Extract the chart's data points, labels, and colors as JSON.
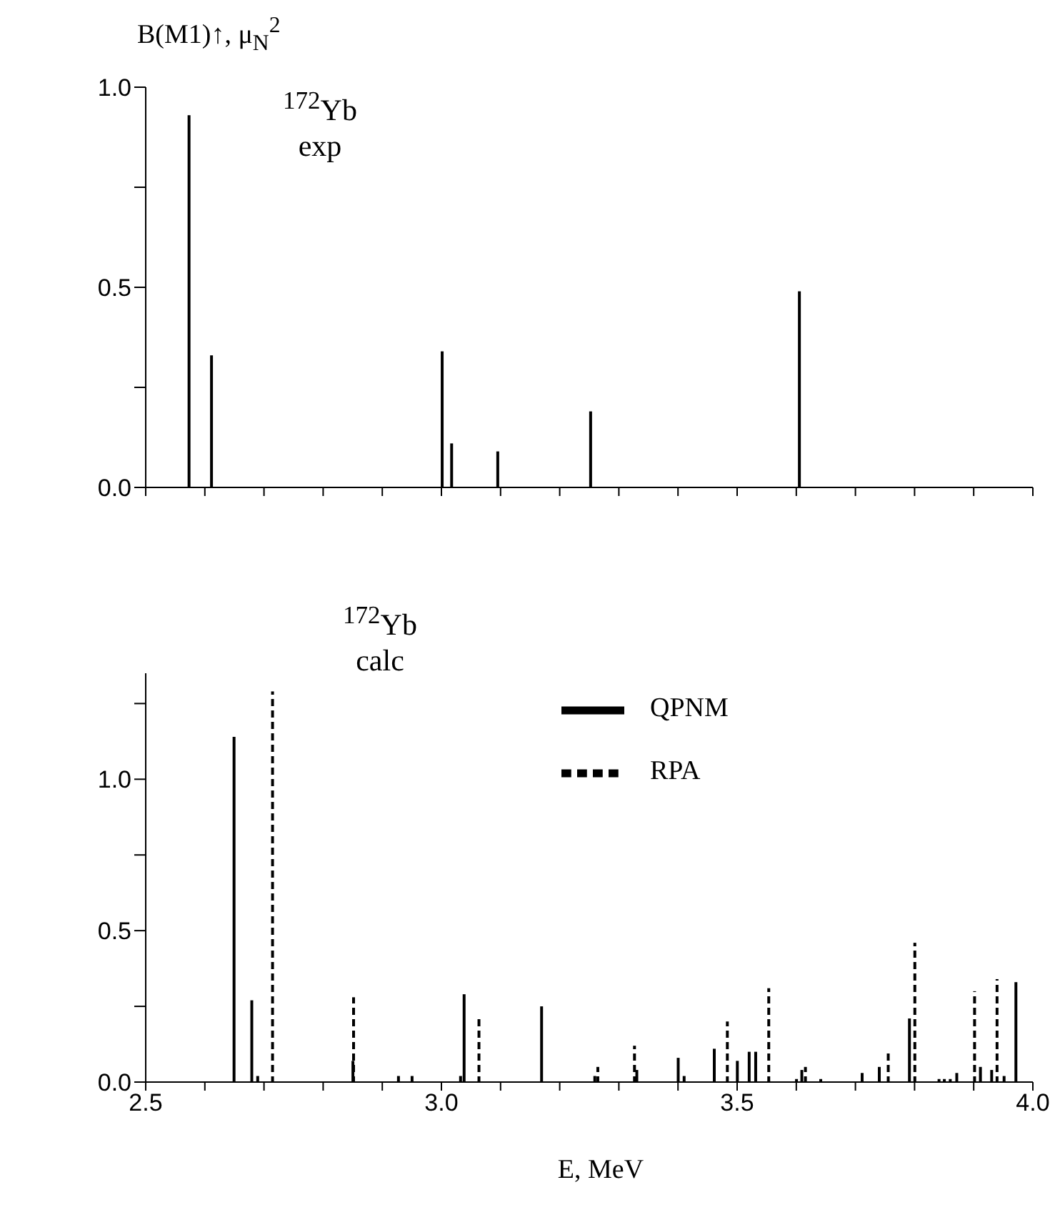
{
  "chart_data": [
    {
      "type": "bar",
      "ylabel": "B(M1)↑, μ$_{N}$$^{2}$",
      "annotations": [
        "$^{172}$Yb",
        "exp"
      ],
      "x": [
        2.574,
        2.612,
        3.002,
        3.018,
        3.096,
        3.253,
        3.606
      ],
      "values": [
        0.93,
        0.33,
        0.34,
        0.11,
        0.09,
        0.19,
        0.49
      ],
      "color": "#000000",
      "line_style": "solid",
      "xlim": [
        2.5,
        4.0
      ],
      "xticks": [
        {
          "value": 2.5,
          "label": null
        },
        {
          "value": 2.6,
          "label": null
        },
        {
          "value": 2.7,
          "label": null
        },
        {
          "value": 2.8,
          "label": null
        },
        {
          "value": 2.9,
          "label": null
        },
        {
          "value": 3.0,
          "label": null
        },
        {
          "value": 3.1,
          "label": null
        },
        {
          "value": 3.2,
          "label": null
        },
        {
          "value": 3.3,
          "label": null
        },
        {
          "value": 3.4,
          "label": null
        },
        {
          "value": 3.5,
          "label": null
        },
        {
          "value": 3.6,
          "label": null
        },
        {
          "value": 3.7,
          "label": null
        },
        {
          "value": 3.8,
          "label": null
        },
        {
          "value": 3.9,
          "label": null
        },
        {
          "value": 4.0,
          "label": null
        }
      ],
      "ylim": [
        0,
        1.0
      ],
      "yticks": [
        {
          "value": 0,
          "label": "0.0"
        },
        {
          "value": 0.25,
          "label": null
        },
        0.5,
        {
          "value": 0.75,
          "label": null
        },
        {
          "value": 1.0,
          "label": "1.0"
        }
      ],
      "tick_labels": "y",
      "grid": false,
      "legend": false
    },
    {
      "type": "bar",
      "xlabel": "E, MeV",
      "annotations": [
        "$^{172}$Yb",
        "calc"
      ],
      "series": [
        {
          "name": "RPA",
          "color": "#000000",
          "line_style": "dashed",
          "x": [
            2.715,
            2.852,
            3.064,
            3.265,
            3.327,
            3.484,
            3.554,
            3.616,
            3.756,
            3.801,
            3.902,
            3.94
          ],
          "values": [
            1.29,
            0.28,
            0.22,
            0.05,
            0.12,
            0.2,
            0.31,
            0.05,
            0.1,
            0.46,
            0.3,
            0.34
          ]
        },
        {
          "name": "QPNM",
          "color": "#000000",
          "line_style": "solid",
          "x": [
            2.649,
            2.679,
            2.689,
            2.85,
            2.927,
            2.95,
            3.032,
            3.038,
            3.169,
            3.259,
            3.33,
            3.4,
            3.41,
            3.461,
            3.5,
            3.52,
            3.531,
            3.6,
            3.609,
            3.641,
            3.711,
            3.74,
            3.791,
            3.841,
            3.85,
            3.86,
            3.871,
            3.911,
            3.93,
            3.951,
            3.971
          ],
          "values": [
            1.14,
            0.27,
            0.02,
            0.07,
            0.02,
            0.02,
            0.02,
            0.29,
            0.25,
            0.02,
            0.04,
            0.08,
            0.02,
            0.11,
            0.07,
            0.1,
            0.1,
            0.01,
            0.04,
            0.01,
            0.03,
            0.05,
            0.21,
            0.01,
            0.01,
            0.01,
            0.03,
            0.05,
            0.04,
            0.02,
            0.33
          ]
        }
      ],
      "xlim": [
        2.5,
        4.0
      ],
      "xticks": [
        2.5,
        {
          "value": 2.6,
          "label": null
        },
        {
          "value": 2.7,
          "label": null
        },
        {
          "value": 2.8,
          "label": null
        },
        {
          "value": 2.9,
          "label": null
        },
        {
          "value": 3.0,
          "label": "3.0"
        },
        {
          "value": 3.1,
          "label": null
        },
        {
          "value": 3.2,
          "label": null
        },
        {
          "value": 3.3,
          "label": null
        },
        {
          "value": 3.4,
          "label": null
        },
        3.5,
        {
          "value": 3.6,
          "label": null
        },
        {
          "value": 3.7,
          "label": null
        },
        {
          "value": 3.8,
          "label": null
        },
        {
          "value": 3.9,
          "label": null
        },
        {
          "value": 4.0,
          "label": "4.0"
        }
      ],
      "ylim": [
        0,
        1.35
      ],
      "yticks": [
        {
          "value": 0,
          "label": "0.0"
        },
        {
          "value": 0.25,
          "label": null
        },
        0.5,
        {
          "value": 0.75,
          "label": null
        },
        {
          "value": 1.0,
          "label": "1.0"
        },
        {
          "value": 1.25,
          "label": null
        }
      ],
      "grid": false,
      "legend": "top right"
    }
  ]
}
